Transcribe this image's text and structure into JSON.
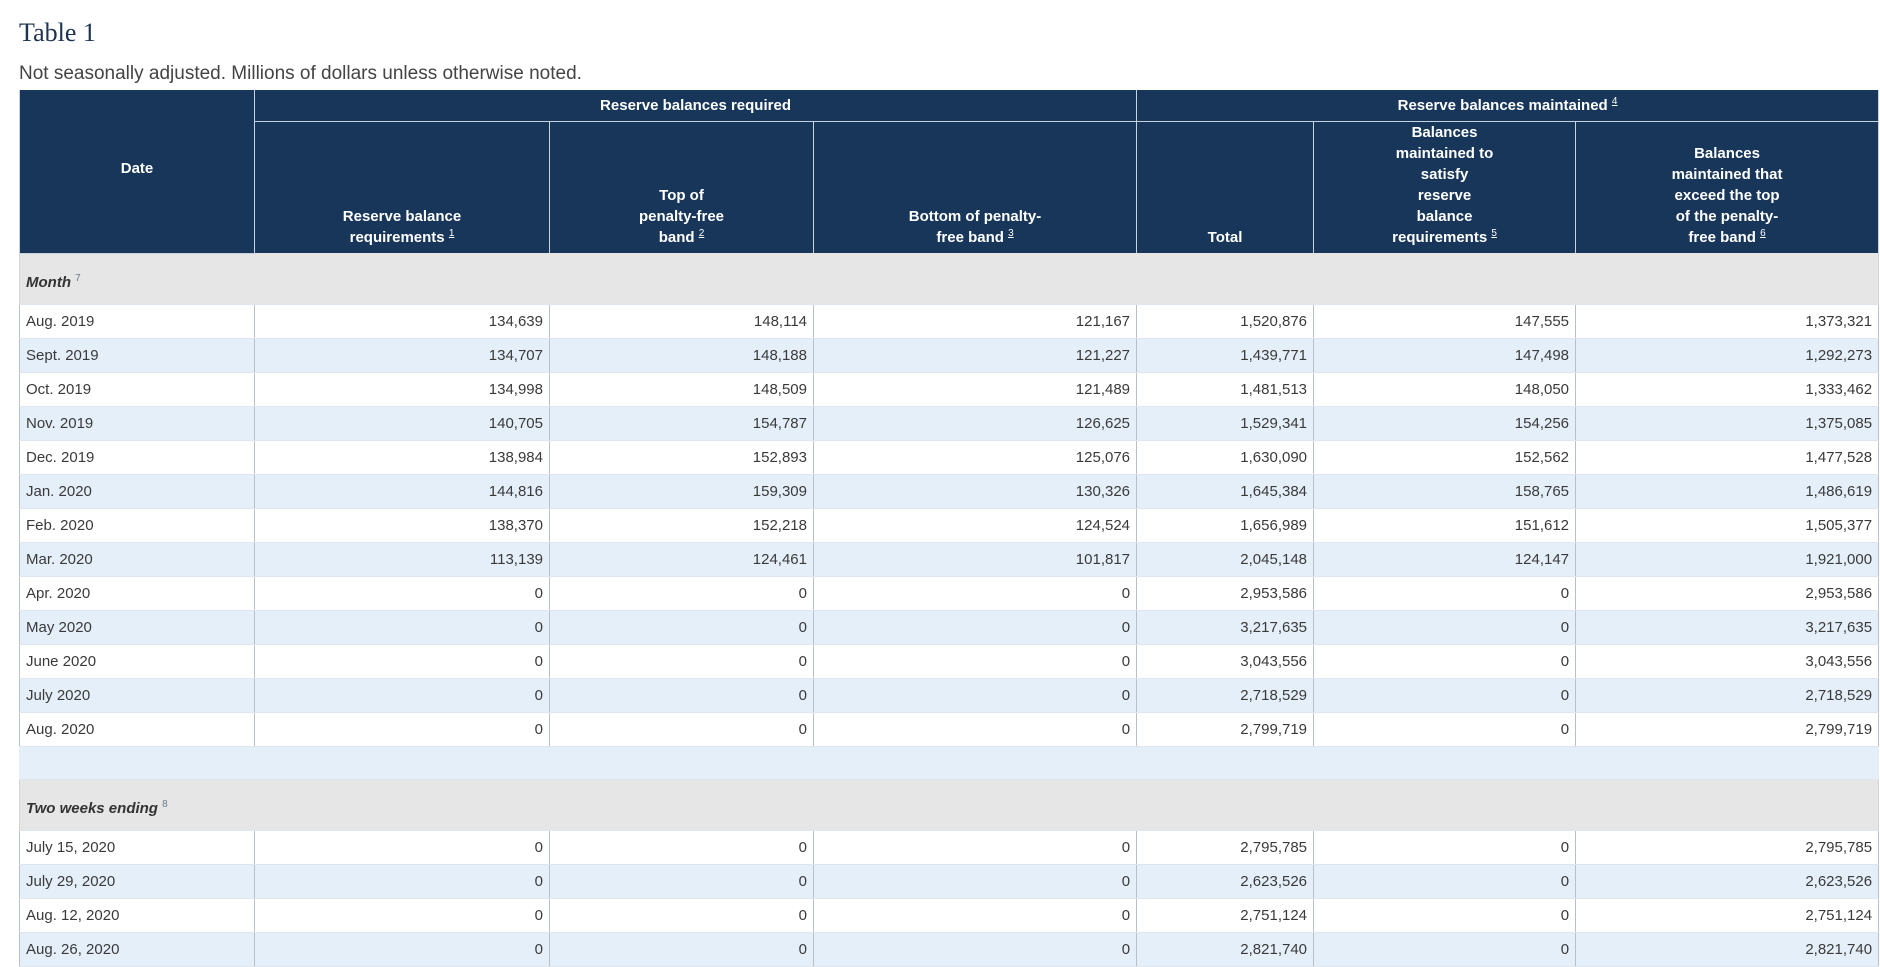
{
  "title": "Table 1",
  "note": "Not seasonally adjusted. Millions of dollars unless otherwise noted.",
  "header": {
    "date": "Date",
    "group_required": {
      "label": "Reserve balances required",
      "footnote": ""
    },
    "group_maintained": {
      "label": "Reserve balances maintained",
      "footnote": "4"
    },
    "columns": [
      {
        "label": "Reserve balance requirements",
        "footnote": "1"
      },
      {
        "label": "Top of penalty-free band",
        "footnote": "2"
      },
      {
        "label": "Bottom of penalty-free band",
        "footnote": "3"
      },
      {
        "label": "Total",
        "footnote": ""
      },
      {
        "label": "Balances maintained to satisfy reserve balance requirements",
        "footnote": "5"
      },
      {
        "label": "Balances maintained that exceed the top of the penalty-free band",
        "footnote": "6"
      }
    ]
  },
  "sections": [
    {
      "label": "Month",
      "footnote": "7",
      "rows": [
        {
          "date": "Aug. 2019",
          "values": [
            "134,639",
            "148,114",
            "121,167",
            "1,520,876",
            "147,555",
            "1,373,321"
          ]
        },
        {
          "date": "Sept. 2019",
          "values": [
            "134,707",
            "148,188",
            "121,227",
            "1,439,771",
            "147,498",
            "1,292,273"
          ]
        },
        {
          "date": "Oct. 2019",
          "values": [
            "134,998",
            "148,509",
            "121,489",
            "1,481,513",
            "148,050",
            "1,333,462"
          ]
        },
        {
          "date": "Nov. 2019",
          "values": [
            "140,705",
            "154,787",
            "126,625",
            "1,529,341",
            "154,256",
            "1,375,085"
          ]
        },
        {
          "date": "Dec. 2019",
          "values": [
            "138,984",
            "152,893",
            "125,076",
            "1,630,090",
            "152,562",
            "1,477,528"
          ]
        },
        {
          "date": "Jan. 2020",
          "values": [
            "144,816",
            "159,309",
            "130,326",
            "1,645,384",
            "158,765",
            "1,486,619"
          ]
        },
        {
          "date": "Feb. 2020",
          "values": [
            "138,370",
            "152,218",
            "124,524",
            "1,656,989",
            "151,612",
            "1,505,377"
          ]
        },
        {
          "date": "Mar. 2020",
          "values": [
            "113,139",
            "124,461",
            "101,817",
            "2,045,148",
            "124,147",
            "1,921,000"
          ]
        },
        {
          "date": "Apr. 2020",
          "values": [
            "0",
            "0",
            "0",
            "2,953,586",
            "0",
            "2,953,586"
          ]
        },
        {
          "date": "May 2020",
          "values": [
            "0",
            "0",
            "0",
            "3,217,635",
            "0",
            "3,217,635"
          ]
        },
        {
          "date": "June 2020",
          "values": [
            "0",
            "0",
            "0",
            "3,043,556",
            "0",
            "3,043,556"
          ]
        },
        {
          "date": "July 2020",
          "values": [
            "0",
            "0",
            "0",
            "2,718,529",
            "0",
            "2,718,529"
          ]
        },
        {
          "date": "Aug. 2020",
          "values": [
            "0",
            "0",
            "0",
            "2,799,719",
            "0",
            "2,799,719"
          ]
        }
      ]
    },
    {
      "label": "Two weeks ending",
      "footnote": "8",
      "rows": [
        {
          "date": "July 15, 2020",
          "values": [
            "0",
            "0",
            "0",
            "2,795,785",
            "0",
            "2,795,785"
          ]
        },
        {
          "date": "July 29, 2020",
          "values": [
            "0",
            "0",
            "0",
            "2,623,526",
            "0",
            "2,623,526"
          ]
        },
        {
          "date": "Aug. 12, 2020",
          "values": [
            "0",
            "0",
            "0",
            "2,751,124",
            "0",
            "2,751,124"
          ]
        },
        {
          "date": "Aug. 26, 2020",
          "values": [
            "0",
            "0",
            "0",
            "2,821,740",
            "0",
            "2,821,740"
          ]
        }
      ]
    }
  ]
}
